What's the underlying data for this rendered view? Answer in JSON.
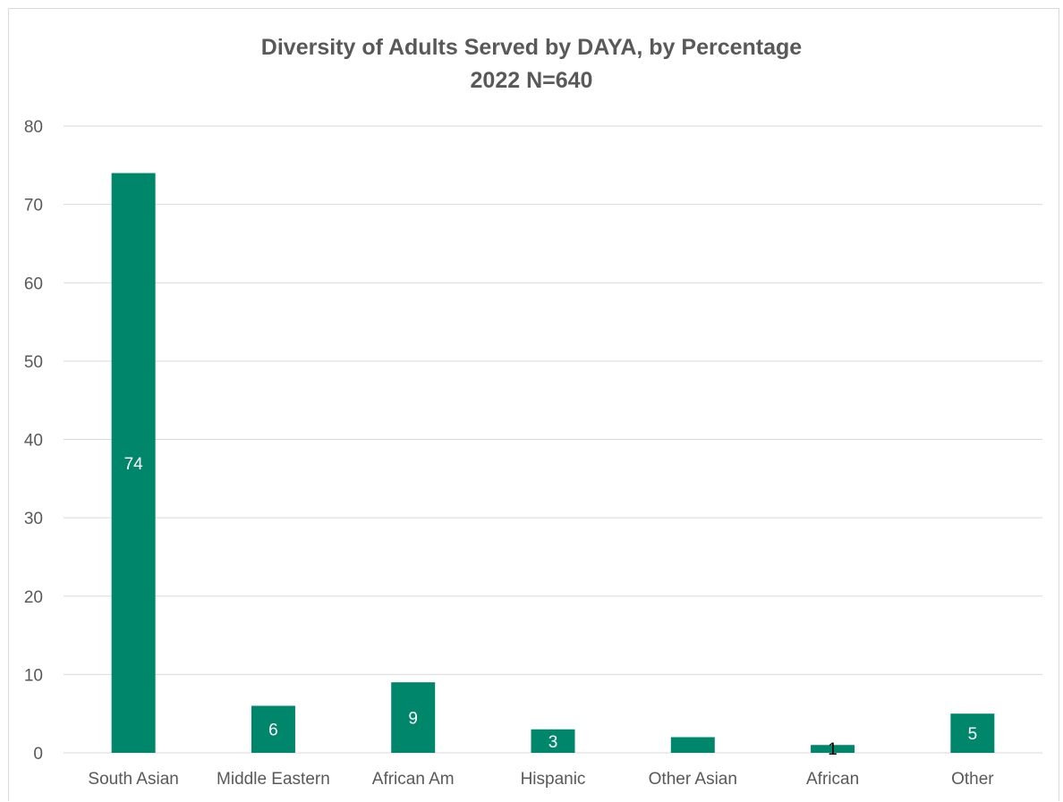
{
  "chart_data": {
    "type": "bar",
    "title": "Diversity of Adults Served by DAYA, by Percentage",
    "subtitle": "2022   N=640",
    "categories": [
      "South Asian",
      "Middle Eastern",
      "African Am",
      "Hispanic",
      "Other Asian",
      "African",
      "Other"
    ],
    "values": [
      74,
      6,
      9,
      3,
      2,
      1,
      5
    ],
    "data_labels": [
      "74",
      "6",
      "9",
      "3",
      "",
      "1",
      "5"
    ],
    "xlabel": "",
    "ylabel": "",
    "ylim": [
      0,
      80
    ],
    "yticks": [
      0,
      10,
      20,
      30,
      40,
      50,
      60,
      70,
      80
    ],
    "grid": true,
    "legend": "none",
    "bar_color": "#00866a",
    "gridline_color": "#d9d9d9",
    "text_color": "#595959"
  }
}
